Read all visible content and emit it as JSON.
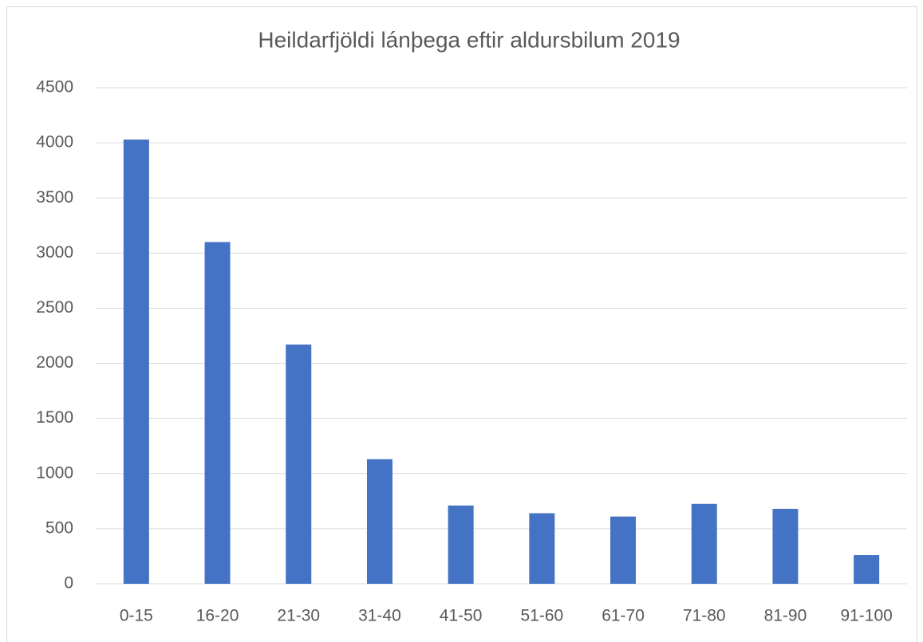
{
  "chart_data": {
    "type": "bar",
    "title": "Heildarfjöldi lánþega eftir aldursbilum 2019",
    "categories": [
      "0-15",
      "16-20",
      "21-30",
      "31-40",
      "41-50",
      "51-60",
      "61-70",
      "71-80",
      "81-90",
      "91-100"
    ],
    "values": [
      4030,
      3100,
      2170,
      1130,
      710,
      640,
      610,
      725,
      680,
      260
    ],
    "color": "#4472c4",
    "ylim": [
      0,
      4500
    ],
    "yticks": [
      0,
      500,
      1000,
      1500,
      2000,
      2500,
      3000,
      3500,
      4000,
      4500
    ],
    "grid": true
  }
}
